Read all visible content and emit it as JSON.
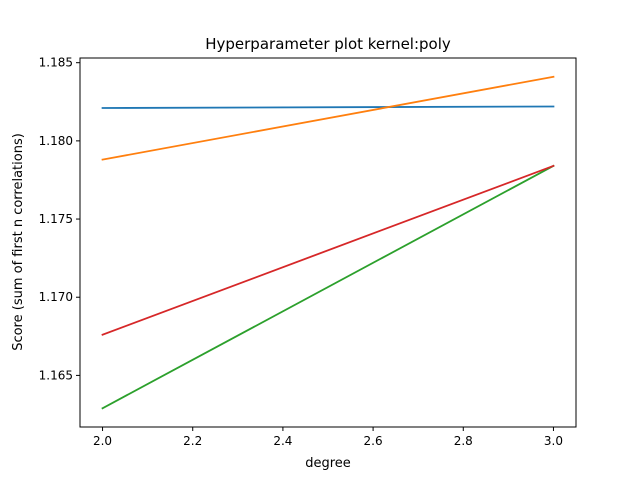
{
  "chart_data": {
    "type": "line",
    "title": "Hyperparameter plot kernel:poly",
    "xlabel": "degree",
    "ylabel": "Score (sum of first n correlations)",
    "x": [
      2.0,
      3.0
    ],
    "xlim": [
      1.95,
      3.05
    ],
    "ylim": [
      1.1617,
      1.1853
    ],
    "xticks": [
      2.0,
      2.2,
      2.4,
      2.6,
      2.8,
      3.0
    ],
    "xtick_labels": [
      "2.0",
      "2.2",
      "2.4",
      "2.6",
      "2.8",
      "3.0"
    ],
    "yticks": [
      1.165,
      1.17,
      1.175,
      1.18,
      1.185
    ],
    "ytick_labels": [
      "1.165",
      "1.170",
      "1.175",
      "1.180",
      "1.185"
    ],
    "grid": false,
    "series": [
      {
        "values": [
          1.1821,
          1.1822
        ],
        "color": "#1f77b4"
      },
      {
        "values": [
          1.1788,
          1.1841
        ],
        "color": "#ff7f0e"
      },
      {
        "values": [
          1.1629,
          1.1784
        ],
        "color": "#2ca02c"
      },
      {
        "values": [
          1.1676,
          1.1784
        ],
        "color": "#d62728"
      }
    ]
  }
}
